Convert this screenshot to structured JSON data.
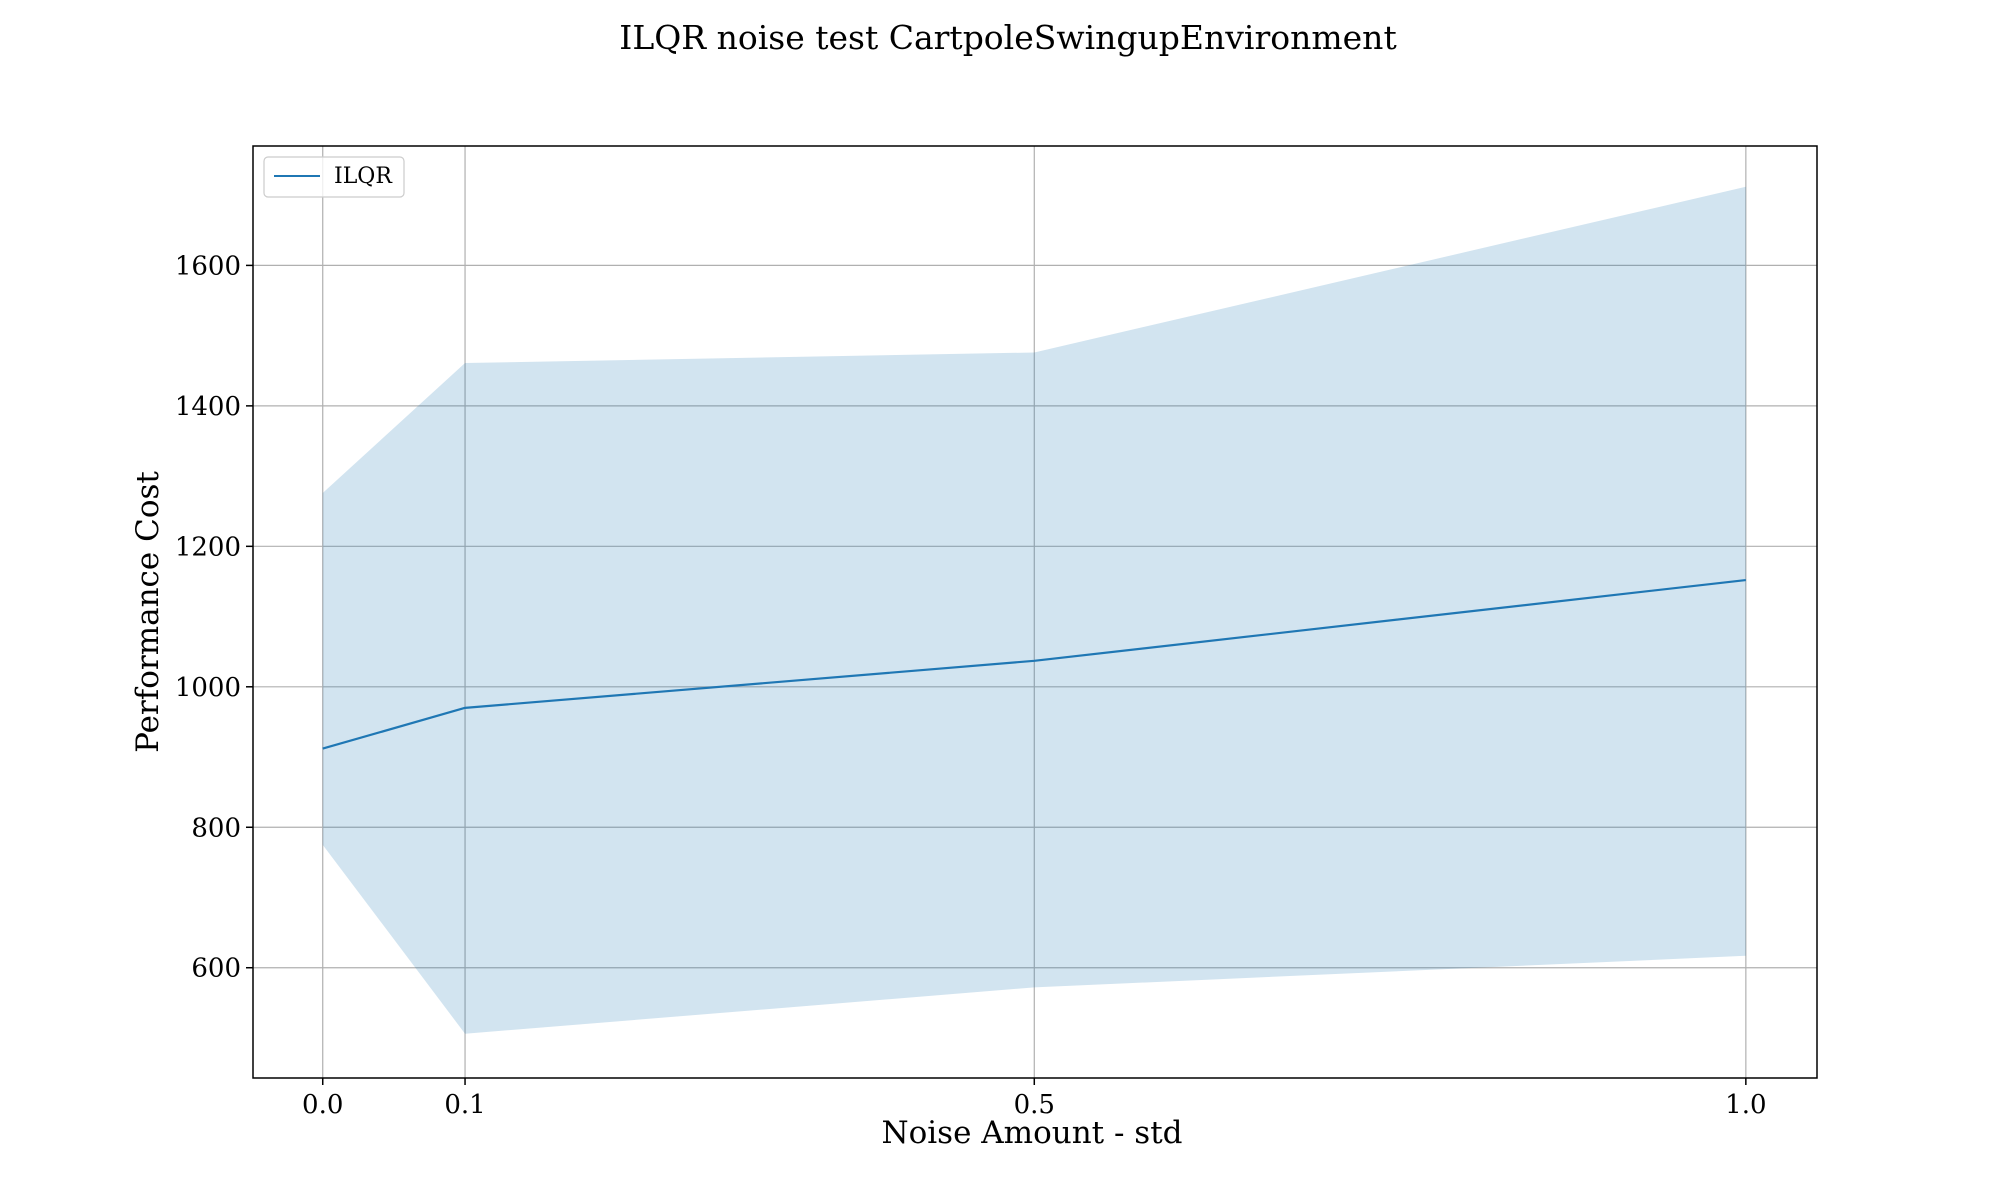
{
  "chart_data": {
    "type": "line",
    "title": "ILQR noise test CartpoleSwingupEnvironment",
    "xlabel": "Noise Amount - std",
    "ylabel": "Performance Cost",
    "x": [
      0.0,
      0.1,
      0.5,
      1.0
    ],
    "xticks": [
      "0.0",
      "0.1",
      "0.5",
      "1.0"
    ],
    "yticks": [
      600,
      800,
      1000,
      1200,
      1400,
      1600
    ],
    "xlim": [
      -0.049,
      1.05
    ],
    "ylim": [
      443,
      1770
    ],
    "grid": true,
    "legend_position": "top-left",
    "series": [
      {
        "name": "ILQR",
        "values": [
          912,
          970,
          1037,
          1152
        ],
        "lower": [
          775,
          506,
          572,
          617
        ],
        "upper": [
          1276,
          1461,
          1476,
          1712
        ],
        "color": "#1f77b4",
        "band_color": "#1f77b4",
        "band_opacity": 0.2
      }
    ]
  }
}
